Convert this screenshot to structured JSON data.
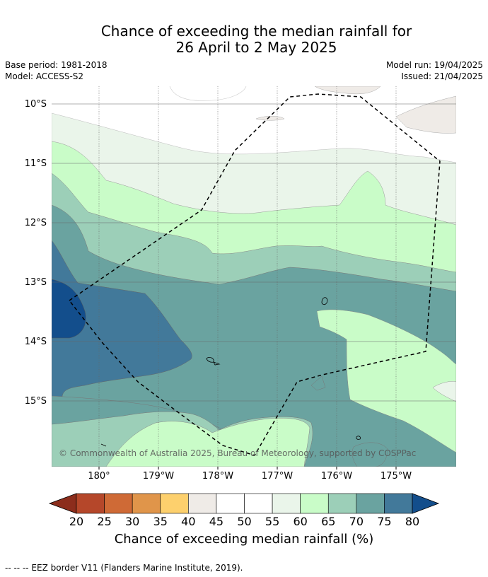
{
  "title_line1": "Chance of exceeding the median rainfall for",
  "title_line2": "26 April to 2 May 2025",
  "meta": {
    "base_period": "Base period: 1981-2018",
    "model": "Model: ACCESS-S2",
    "model_run": "Model run: 19/04/2025",
    "issued": "Issued: 21/04/2025"
  },
  "map": {
    "lat_labels": [
      "10°S",
      "11°S",
      "12°S",
      "13°S",
      "14°S",
      "15°S"
    ],
    "lon_labels": [
      "180°",
      "179°W",
      "178°W",
      "177°W",
      "176°W",
      "175°W"
    ],
    "copyright": "© Commonwealth of Australia 2025, Bureau of Meteorology, supported by COSPPac"
  },
  "colorbar": {
    "title": "Chance of exceeding median rainfall (%)",
    "ticks": [
      "20",
      "25",
      "30",
      "35",
      "40",
      "45",
      "50",
      "55",
      "60",
      "65",
      "70",
      "75",
      "80"
    ],
    "colors": [
      "#8c2d1c",
      "#b5472a",
      "#cf6a36",
      "#e0954a",
      "#fdd06d",
      "#efebe7",
      "#ffffff",
      "#ffffff",
      "#eaf5ea",
      "#c9fcc8",
      "#9ccfb8",
      "#6aa3a0",
      "#42799a",
      "#134e8c"
    ]
  },
  "footer": "--  --  -- EEZ border V11 (Flanders Marine Institute, 2019)."
}
